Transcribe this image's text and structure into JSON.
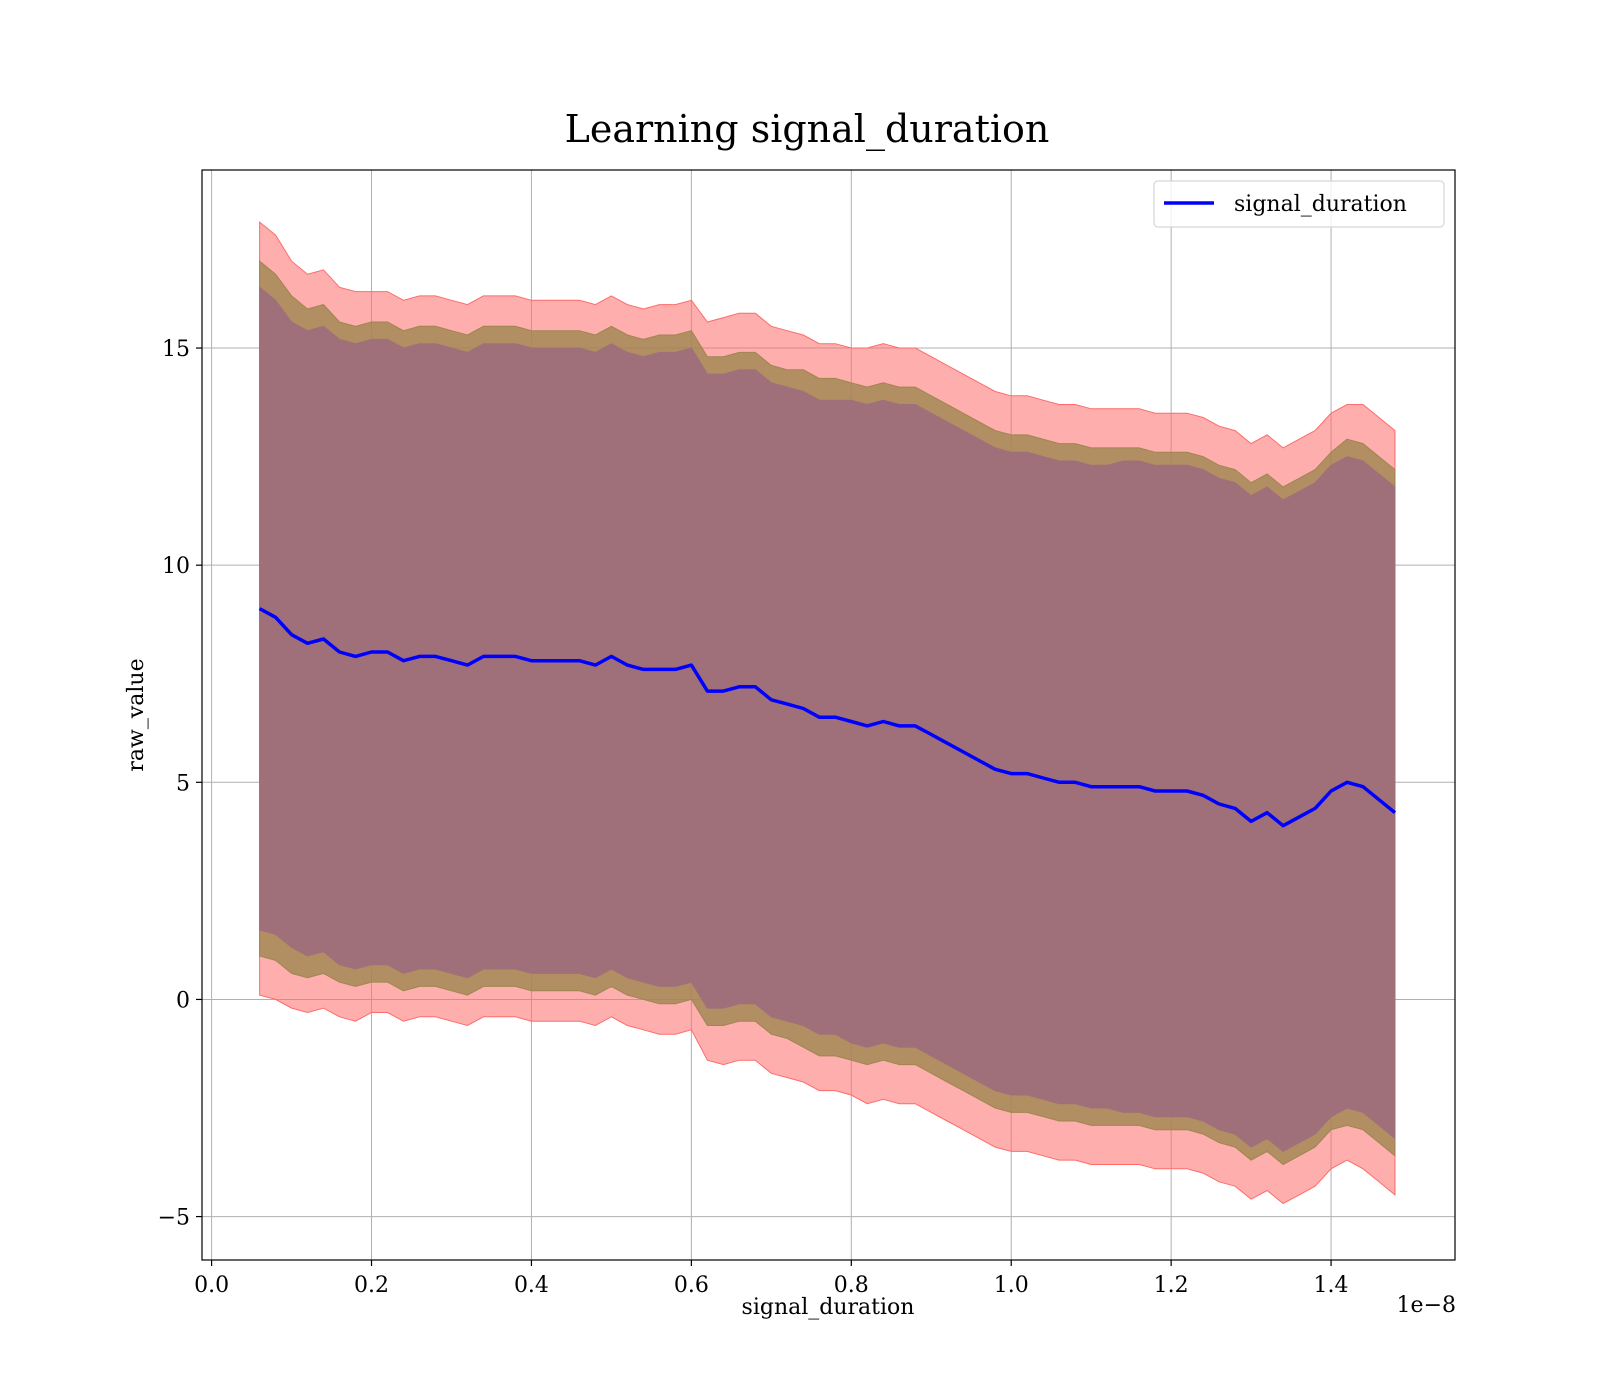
{
  "chart_data": {
    "type": "line",
    "title": "Learning signal_duration",
    "xlabel": "signal_duration",
    "ylabel": "raw_value",
    "x_offset_label": "1e−8",
    "xlim": [
      -0.012,
      1.555
    ],
    "ylim": [
      -6.0,
      19.1
    ],
    "grid": true,
    "legend_position": "top-right",
    "x_ticks": [
      0.0,
      0.2,
      0.4,
      0.6,
      0.8,
      1.0,
      1.2,
      1.4
    ],
    "x_tick_labels": [
      "0.0",
      "0.2",
      "0.4",
      "0.6",
      "0.8",
      "1.0",
      "1.2",
      "1.4"
    ],
    "y_ticks": [
      -5,
      0,
      5,
      10,
      15
    ],
    "y_tick_labels": [
      "−5",
      "0",
      "5",
      "10",
      "15"
    ],
    "colors": {
      "line": "#0000ff",
      "band_3sigma": "#ff6b6b",
      "band_2_5sigma": "#9f8650",
      "band_2sigma": "#a0707a"
    },
    "series": [
      {
        "name": "signal_duration",
        "x": [
          0.06,
          0.08,
          0.1,
          0.12,
          0.14,
          0.16,
          0.18,
          0.2,
          0.22,
          0.24,
          0.26,
          0.28,
          0.3,
          0.32,
          0.34,
          0.36,
          0.38,
          0.4,
          0.42,
          0.44,
          0.46,
          0.48,
          0.5,
          0.52,
          0.54,
          0.56,
          0.58,
          0.6,
          0.62,
          0.64,
          0.66,
          0.68,
          0.7,
          0.72,
          0.74,
          0.76,
          0.78,
          0.8,
          0.82,
          0.84,
          0.86,
          0.88,
          0.9,
          0.92,
          0.94,
          0.96,
          0.98,
          1.0,
          1.02,
          1.04,
          1.06,
          1.08,
          1.1,
          1.12,
          1.14,
          1.16,
          1.18,
          1.2,
          1.22,
          1.24,
          1.26,
          1.28,
          1.3,
          1.32,
          1.34,
          1.36,
          1.38,
          1.4,
          1.42,
          1.44,
          1.46,
          1.48
        ],
        "y": [
          9.0,
          8.8,
          8.4,
          8.2,
          8.3,
          8.0,
          7.9,
          8.0,
          8.0,
          7.8,
          7.9,
          7.9,
          7.8,
          7.7,
          7.9,
          7.9,
          7.9,
          7.8,
          7.8,
          7.8,
          7.8,
          7.7,
          7.9,
          7.7,
          7.6,
          7.6,
          7.6,
          7.7,
          7.1,
          7.1,
          7.2,
          7.2,
          6.9,
          6.8,
          6.7,
          6.5,
          6.5,
          6.4,
          6.3,
          6.4,
          6.3,
          6.3,
          6.1,
          5.9,
          5.7,
          5.5,
          5.3,
          5.2,
          5.2,
          5.1,
          5.0,
          5.0,
          4.9,
          4.9,
          4.9,
          4.9,
          4.8,
          4.8,
          4.8,
          4.7,
          4.5,
          4.4,
          4.1,
          4.3,
          4.0,
          4.2,
          4.4,
          4.8,
          5.0,
          4.9,
          4.6,
          4.3
        ]
      }
    ],
    "bands": [
      {
        "level": "3sigma",
        "half_width": [
          8.9,
          8.8,
          8.6,
          8.5,
          8.5,
          8.4,
          8.4,
          8.3,
          8.3,
          8.3,
          8.3,
          8.3,
          8.3,
          8.3,
          8.3,
          8.3,
          8.3,
          8.3,
          8.3,
          8.3,
          8.3,
          8.3,
          8.3,
          8.3,
          8.3,
          8.4,
          8.4,
          8.4,
          8.5,
          8.6,
          8.6,
          8.6,
          8.6,
          8.6,
          8.6,
          8.6,
          8.6,
          8.6,
          8.7,
          8.7,
          8.7,
          8.7,
          8.7,
          8.7,
          8.7,
          8.7,
          8.7,
          8.7,
          8.7,
          8.7,
          8.7,
          8.7,
          8.7,
          8.7,
          8.7,
          8.7,
          8.7,
          8.7,
          8.7,
          8.7,
          8.7,
          8.7,
          8.7,
          8.7,
          8.7,
          8.7,
          8.7,
          8.7,
          8.7,
          8.8,
          8.8,
          8.8
        ]
      },
      {
        "level": "2.5sigma",
        "half_width": [
          8.0,
          7.9,
          7.8,
          7.7,
          7.7,
          7.6,
          7.6,
          7.6,
          7.6,
          7.6,
          7.6,
          7.6,
          7.6,
          7.6,
          7.6,
          7.6,
          7.6,
          7.6,
          7.6,
          7.6,
          7.6,
          7.6,
          7.6,
          7.6,
          7.6,
          7.7,
          7.7,
          7.7,
          7.7,
          7.7,
          7.7,
          7.7,
          7.7,
          7.7,
          7.8,
          7.8,
          7.8,
          7.8,
          7.8,
          7.8,
          7.8,
          7.8,
          7.8,
          7.8,
          7.8,
          7.8,
          7.8,
          7.8,
          7.8,
          7.8,
          7.8,
          7.8,
          7.8,
          7.8,
          7.8,
          7.8,
          7.8,
          7.8,
          7.8,
          7.8,
          7.8,
          7.8,
          7.8,
          7.8,
          7.8,
          7.8,
          7.8,
          7.8,
          7.9,
          7.9,
          7.9,
          7.9
        ]
      },
      {
        "level": "2sigma",
        "half_width": [
          7.4,
          7.3,
          7.2,
          7.2,
          7.2,
          7.2,
          7.2,
          7.2,
          7.2,
          7.2,
          7.2,
          7.2,
          7.2,
          7.2,
          7.2,
          7.2,
          7.2,
          7.2,
          7.2,
          7.2,
          7.2,
          7.2,
          7.2,
          7.2,
          7.2,
          7.3,
          7.3,
          7.3,
          7.3,
          7.3,
          7.3,
          7.3,
          7.3,
          7.3,
          7.3,
          7.3,
          7.3,
          7.4,
          7.4,
          7.4,
          7.4,
          7.4,
          7.4,
          7.4,
          7.4,
          7.4,
          7.4,
          7.4,
          7.4,
          7.4,
          7.4,
          7.4,
          7.4,
          7.4,
          7.5,
          7.5,
          7.5,
          7.5,
          7.5,
          7.5,
          7.5,
          7.5,
          7.5,
          7.5,
          7.5,
          7.5,
          7.5,
          7.5,
          7.5,
          7.5,
          7.5,
          7.5
        ]
      }
    ]
  }
}
